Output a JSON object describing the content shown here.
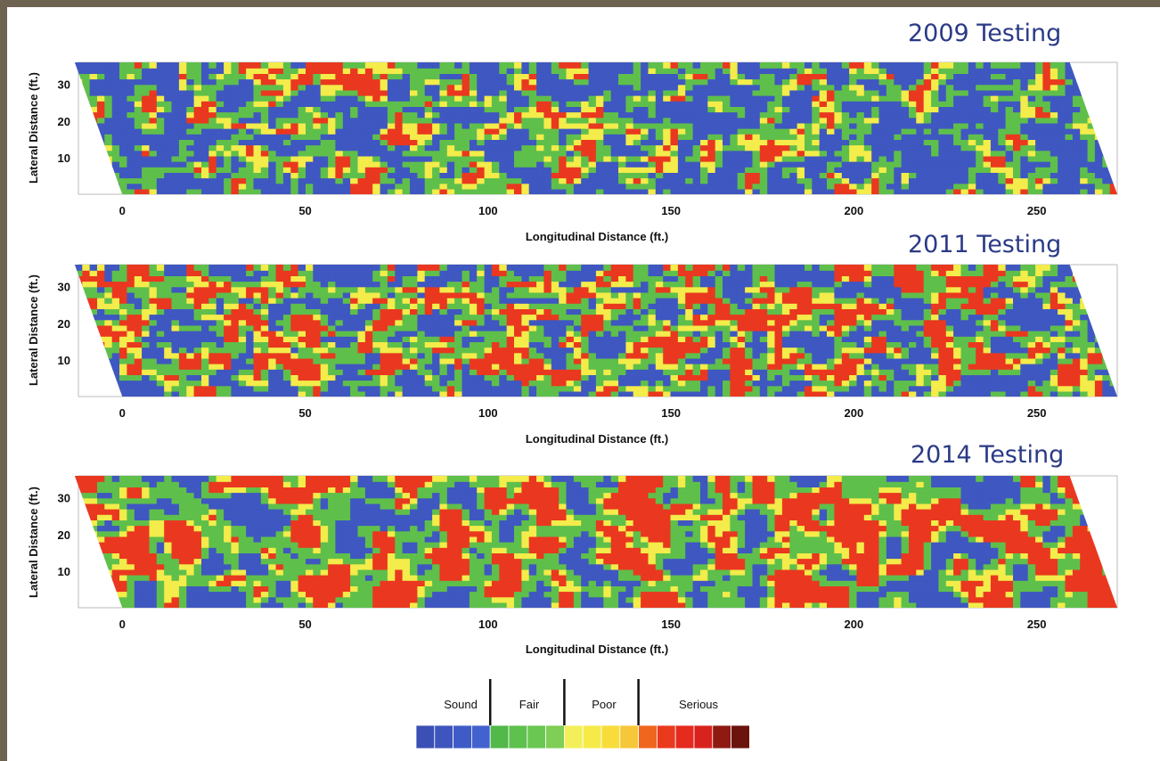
{
  "chart_data": [
    {
      "type": "heatmap",
      "title": "2009 Testing",
      "xlabel": "Longitudinal Distance (ft.)",
      "ylabel": "Lateral Distance (ft.)",
      "xticks": [
        0,
        50,
        100,
        150,
        200,
        250
      ],
      "yticks": [
        10,
        20,
        30
      ],
      "xlim": [
        -12,
        272
      ],
      "ylim": [
        0,
        36
      ],
      "deck_skew_ft": 13,
      "seed": 2009,
      "condition_mix": {
        "Sound": 0.46,
        "Fair": 0.31,
        "Poor": 0.13,
        "Serious": 0.1
      },
      "smoothness": 1
    },
    {
      "type": "heatmap",
      "title": "2011 Testing",
      "xlabel": "Longitudinal Distance (ft.)",
      "ylabel": "Lateral Distance (ft.)",
      "xticks": [
        0,
        50,
        100,
        150,
        200,
        250
      ],
      "yticks": [
        10,
        20,
        30
      ],
      "xlim": [
        -12,
        272
      ],
      "ylim": [
        0,
        36
      ],
      "deck_skew_ft": 13,
      "seed": 2011,
      "condition_mix": {
        "Sound": 0.32,
        "Fair": 0.3,
        "Poor": 0.14,
        "Serious": 0.24
      },
      "smoothness": 1
    },
    {
      "type": "heatmap",
      "title": "2014 Testing",
      "xlabel": "Longitudinal Distance (ft.)",
      "ylabel": "Lateral Distance (ft.)",
      "xticks": [
        0,
        50,
        100,
        150,
        200,
        250
      ],
      "yticks": [
        10,
        20,
        30
      ],
      "xlim": [
        -12,
        272
      ],
      "ylim": [
        0,
        36
      ],
      "deck_skew_ft": 13,
      "seed": 2014,
      "condition_mix": {
        "Sound": 0.22,
        "Fair": 0.33,
        "Poor": 0.13,
        "Serious": 0.32
      },
      "smoothness": 2
    }
  ],
  "legend": {
    "categories": [
      {
        "label": "Sound",
        "colors": [
          "#3b4fb5",
          "#3d55bd",
          "#3f5cc6",
          "#4262cf"
        ]
      },
      {
        "label": "Fair",
        "colors": [
          "#52b84a",
          "#5ec04d",
          "#6ac752",
          "#7fce55"
        ]
      },
      {
        "label": "Poor",
        "colors": [
          "#f2ef5a",
          "#f6ea48",
          "#f8dc3a",
          "#f6c73a"
        ]
      },
      {
        "label": "Serious",
        "colors": [
          "#f0661f",
          "#ea3a1e",
          "#e52a1e",
          "#d8221d",
          "#8e1a12",
          "#6b130d"
        ]
      }
    ]
  },
  "palette": {
    "Sound": "#3f57c0",
    "Fair": "#5fbf4b",
    "Poor": "#f3ec4a",
    "Serious": "#e9381f",
    "frame_background": "#6e6250",
    "title_color": "#2b3a86"
  }
}
